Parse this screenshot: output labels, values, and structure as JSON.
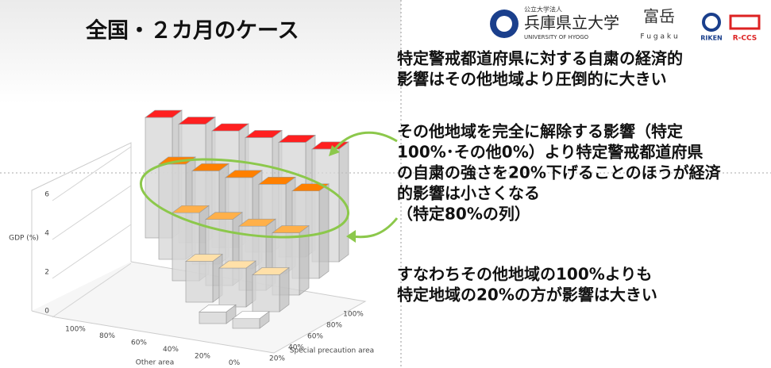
{
  "header": {
    "title": "全国・２カ月のケース",
    "university_small": "公立大学法人",
    "university": "兵庫県立大学",
    "university_en": "UNIVERSITY OF HYOGO",
    "fugaku": "富岳",
    "fugaku_en": "F u g a k u",
    "riken": "RIKEN",
    "rccs": "R-CCS"
  },
  "chart_data": {
    "type": "bar3d",
    "ylabel": "GDP (%)",
    "xlabel": "Other area",
    "zlabel": "Special precaution area",
    "categories": [
      "100%",
      "80%",
      "60%",
      "40%",
      "20%",
      "0%"
    ],
    "series": [
      {
        "name": "100%",
        "color": "#ff2020",
        "values": [
          6.2,
          6.1,
          6.0,
          5.9,
          5.9,
          5.8
        ]
      },
      {
        "name": "80%",
        "color": "#ff8000",
        "values": [
          4.9,
          4.8,
          4.7,
          4.6,
          4.5,
          null
        ]
      },
      {
        "name": "60%",
        "color": "#ffb04a",
        "values": [
          3.5,
          3.4,
          3.3,
          3.2,
          null,
          null
        ]
      },
      {
        "name": "40%",
        "color": "#ffe0a8",
        "values": [
          2.1,
          2.0,
          1.9,
          null,
          null,
          null
        ]
      },
      {
        "name": "20%",
        "color": "#ffffff",
        "values": [
          0.6,
          0.5,
          null,
          null,
          null,
          null
        ]
      }
    ],
    "ylim": [
      0,
      6
    ],
    "yticks": [
      0,
      2,
      4,
      6
    ]
  },
  "messages": {
    "first": [
      "特定警戒都道府県に対する自粛の経済的",
      "影響はその他地域より圧倒的に大きい"
    ],
    "second": [
      "その他地域を完全に解除する影響（特定",
      "100%･その他0%）より特定警戒都道府県",
      "の自粛の強さを20%下げることのほうが経済",
      "的影響は小さくなる",
      "（特定80%の列）"
    ],
    "third": [
      "すなわちその他地域の100%よりも",
      "特定地域の20%の方が影響は大きい"
    ]
  }
}
